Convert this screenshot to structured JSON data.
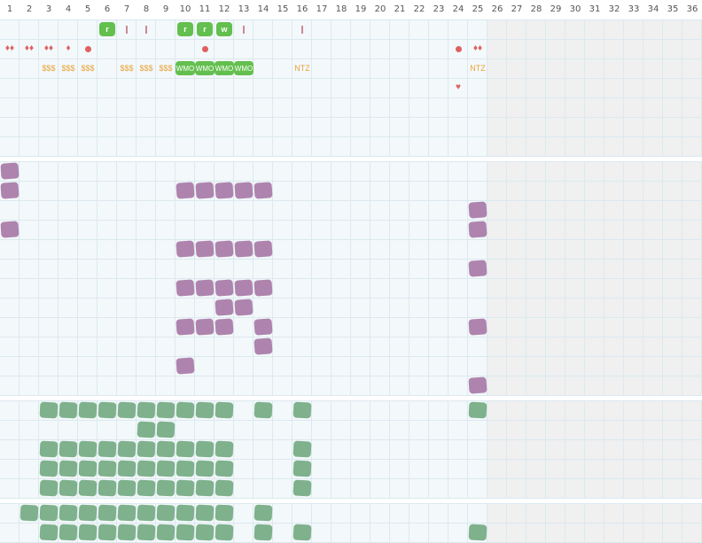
{
  "header": {
    "day_labels": [
      "1",
      "2",
      "3",
      "4",
      "5",
      "6",
      "7",
      "8",
      "9",
      "10",
      "11",
      "12",
      "13",
      "14",
      "15",
      "16",
      "17",
      "18",
      "19",
      "20",
      "21",
      "22",
      "23",
      "24",
      "25",
      "26",
      "27",
      "28",
      "29",
      "30",
      "31",
      "32",
      "33",
      "34",
      "35",
      "36"
    ]
  },
  "colors": {
    "grid_line": "#dbe9ef",
    "cell_bg": "#f3f8fa",
    "weekend_bg": "#f0f0f0",
    "purple": "#ae84ae",
    "green_dark": "#7eb18c",
    "green_bright": "#63bf4e",
    "orange": "#e8a33a",
    "red": "#e06060"
  },
  "icons": {
    "green_chip": "green-badge",
    "tick": "tick-mark",
    "drop_pair": "drops-icon",
    "drop_triple": "drops-cluster-icon",
    "drop": "drop-icon",
    "dot": "dot-icon",
    "heart": "heart-icon",
    "scribble": "scribble-marker"
  },
  "top_rows": [
    {
      "r": 0,
      "c": 6,
      "kind": "chip",
      "text": "r"
    },
    {
      "r": 0,
      "c": 7,
      "kind": "tick"
    },
    {
      "r": 0,
      "c": 8,
      "kind": "tick"
    },
    {
      "r": 0,
      "c": 10,
      "kind": "chip",
      "text": "r"
    },
    {
      "r": 0,
      "c": 11,
      "kind": "chip",
      "text": "r"
    },
    {
      "r": 0,
      "c": 12,
      "kind": "chip",
      "text": "w"
    },
    {
      "r": 0,
      "c": 13,
      "kind": "tick"
    },
    {
      "r": 0,
      "c": 16,
      "kind": "tick"
    },
    {
      "r": 1,
      "c": 1,
      "kind": "glyph",
      "text": "♦♦"
    },
    {
      "r": 1,
      "c": 2,
      "kind": "glyph",
      "text": "♦♦"
    },
    {
      "r": 1,
      "c": 3,
      "kind": "glyph",
      "text": "♦♦"
    },
    {
      "r": 1,
      "c": 4,
      "kind": "glyph",
      "text": "♦"
    },
    {
      "r": 1,
      "c": 5,
      "kind": "dot"
    },
    {
      "r": 1,
      "c": 11,
      "kind": "dot"
    },
    {
      "r": 1,
      "c": 24,
      "kind": "dot"
    },
    {
      "r": 1,
      "c": 25,
      "kind": "glyph",
      "text": "♦♦"
    },
    {
      "r": 2,
      "c": 3,
      "kind": "text",
      "text": "$$$"
    },
    {
      "r": 2,
      "c": 4,
      "kind": "text",
      "text": "$$$"
    },
    {
      "r": 2,
      "c": 5,
      "kind": "text",
      "text": "$$$"
    },
    {
      "r": 2,
      "c": 7,
      "kind": "text",
      "text": "$$$"
    },
    {
      "r": 2,
      "c": 8,
      "kind": "text",
      "text": "$$$"
    },
    {
      "r": 2,
      "c": 9,
      "kind": "text",
      "text": "$$$"
    },
    {
      "r": 2,
      "c": 10,
      "kind": "chipw",
      "text": "WMO"
    },
    {
      "r": 2,
      "c": 11,
      "kind": "chipw",
      "text": "WMO"
    },
    {
      "r": 2,
      "c": 12,
      "kind": "chipw",
      "text": "WMO"
    },
    {
      "r": 2,
      "c": 13,
      "kind": "chipw",
      "text": "WMO"
    },
    {
      "r": 2,
      "c": 16,
      "kind": "text",
      "text": "NTZ"
    },
    {
      "r": 2,
      "c": 25,
      "kind": "text",
      "text": "NTZ"
    },
    {
      "r": 3,
      "c": 24,
      "kind": "glyph",
      "text": "♥"
    }
  ],
  "purple_marks": [
    [
      0,
      1
    ],
    [
      1,
      1
    ],
    [
      1,
      10
    ],
    [
      1,
      11
    ],
    [
      1,
      12
    ],
    [
      1,
      13
    ],
    [
      1,
      14
    ],
    [
      2,
      25
    ],
    [
      3,
      1
    ],
    [
      3,
      25
    ],
    [
      4,
      10
    ],
    [
      4,
      11
    ],
    [
      4,
      12
    ],
    [
      4,
      13
    ],
    [
      4,
      14
    ],
    [
      5,
      25
    ],
    [
      6,
      10
    ],
    [
      6,
      11
    ],
    [
      6,
      12
    ],
    [
      6,
      13
    ],
    [
      6,
      14
    ],
    [
      7,
      12
    ],
    [
      7,
      13
    ],
    [
      8,
      10
    ],
    [
      8,
      11
    ],
    [
      8,
      12
    ],
    [
      8,
      14
    ],
    [
      8,
      25
    ],
    [
      9,
      14
    ],
    [
      10,
      10
    ],
    [
      11,
      25
    ]
  ],
  "green_marks_a": [
    [
      0,
      3
    ],
    [
      0,
      4
    ],
    [
      0,
      5
    ],
    [
      0,
      6
    ],
    [
      0,
      7
    ],
    [
      0,
      8
    ],
    [
      0,
      9
    ],
    [
      0,
      10
    ],
    [
      0,
      11
    ],
    [
      0,
      12
    ],
    [
      0,
      14
    ],
    [
      0,
      16
    ],
    [
      0,
      25
    ],
    [
      1,
      8
    ],
    [
      1,
      9
    ],
    [
      2,
      3
    ],
    [
      2,
      4
    ],
    [
      2,
      5
    ],
    [
      2,
      6
    ],
    [
      2,
      7
    ],
    [
      2,
      8
    ],
    [
      2,
      9
    ],
    [
      2,
      10
    ],
    [
      2,
      11
    ],
    [
      2,
      12
    ],
    [
      2,
      16
    ],
    [
      3,
      3
    ],
    [
      3,
      4
    ],
    [
      3,
      5
    ],
    [
      3,
      6
    ],
    [
      3,
      7
    ],
    [
      3,
      8
    ],
    [
      3,
      9
    ],
    [
      3,
      10
    ],
    [
      3,
      11
    ],
    [
      3,
      12
    ],
    [
      3,
      16
    ],
    [
      4,
      3
    ],
    [
      4,
      4
    ],
    [
      4,
      5
    ],
    [
      4,
      6
    ],
    [
      4,
      7
    ],
    [
      4,
      8
    ],
    [
      4,
      9
    ],
    [
      4,
      10
    ],
    [
      4,
      11
    ],
    [
      4,
      12
    ],
    [
      4,
      16
    ]
  ],
  "green_marks_b": [
    [
      0,
      2
    ],
    [
      0,
      3
    ],
    [
      0,
      4
    ],
    [
      0,
      5
    ],
    [
      0,
      6
    ],
    [
      0,
      7
    ],
    [
      0,
      8
    ],
    [
      0,
      9
    ],
    [
      0,
      10
    ],
    [
      0,
      11
    ],
    [
      0,
      12
    ],
    [
      0,
      14
    ],
    [
      1,
      3
    ],
    [
      1,
      4
    ],
    [
      1,
      5
    ],
    [
      1,
      6
    ],
    [
      1,
      7
    ],
    [
      1,
      8
    ],
    [
      1,
      9
    ],
    [
      1,
      10
    ],
    [
      1,
      11
    ],
    [
      1,
      12
    ],
    [
      1,
      14
    ],
    [
      1,
      16
    ],
    [
      1,
      25
    ]
  ]
}
